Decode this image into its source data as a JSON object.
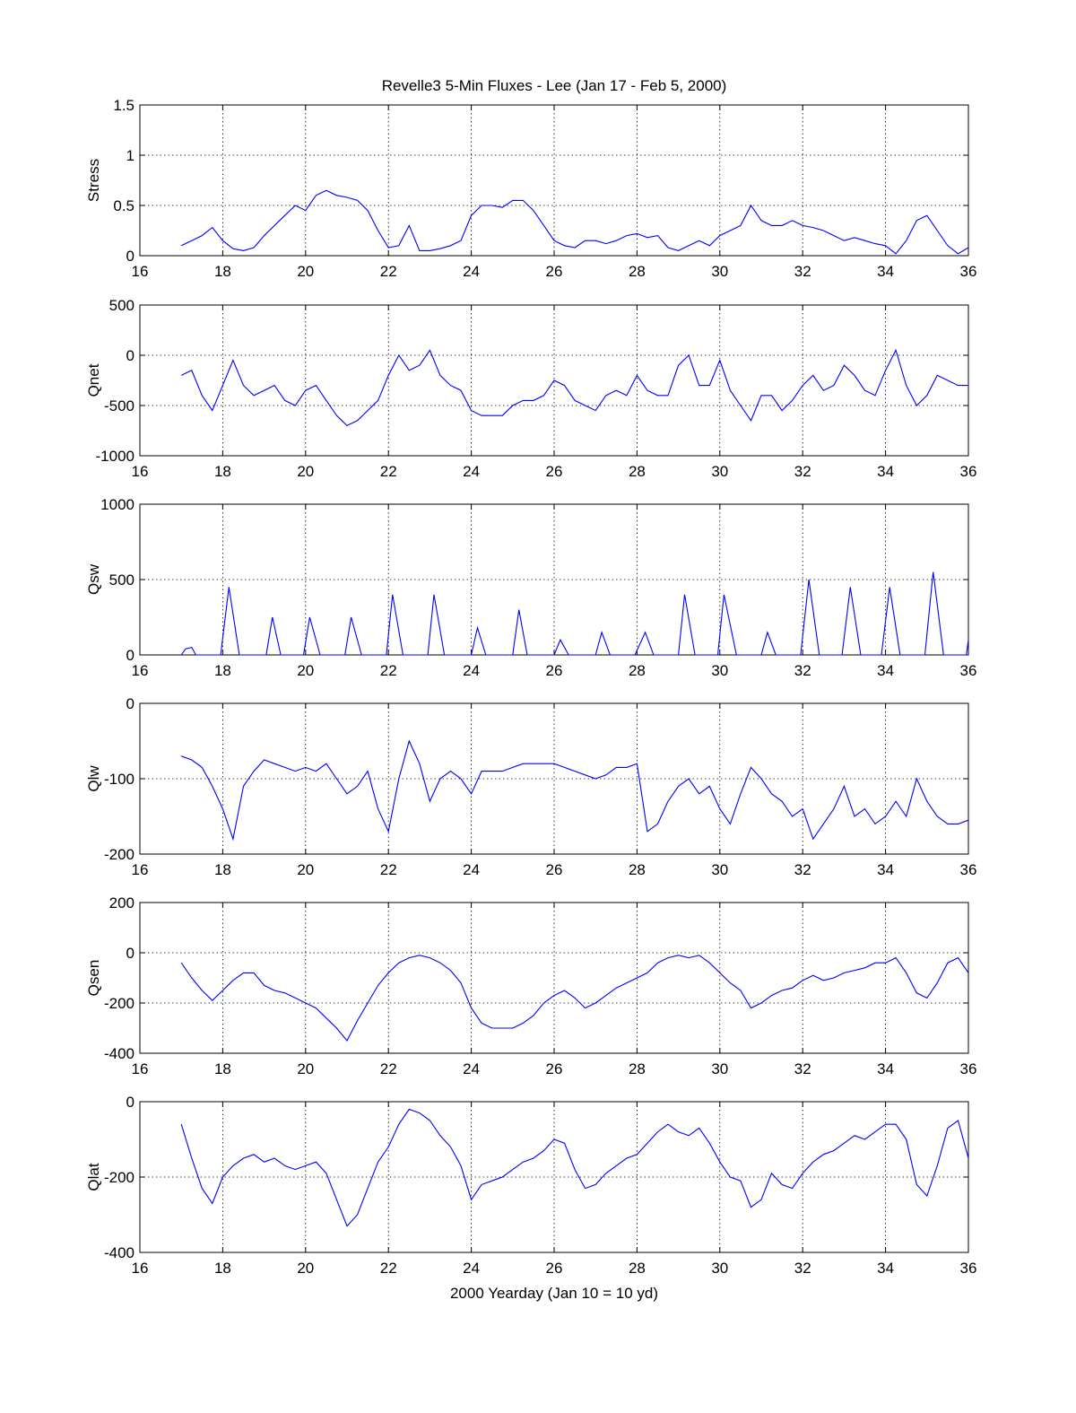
{
  "chart_data": {
    "type": "line",
    "title": "Revelle3 5-Min Fluxes - Lee (Jan 17 - Feb 5, 2000)",
    "xlabel": "2000 Yearday  (Jan 10 = 10 yd)",
    "xlim": [
      16,
      36
    ],
    "xticks": [
      "16",
      "18",
      "20",
      "22",
      "24",
      "26",
      "28",
      "30",
      "32",
      "34",
      "36"
    ],
    "grid": true,
    "line_color": "#0000ff",
    "x": [
      17,
      17.25,
      17.5,
      17.75,
      18,
      18.25,
      18.5,
      18.75,
      19,
      19.25,
      19.5,
      19.75,
      20,
      20.25,
      20.5,
      20.75,
      21,
      21.25,
      21.5,
      21.75,
      22,
      22.25,
      22.5,
      22.75,
      23,
      23.25,
      23.5,
      23.75,
      24,
      24.25,
      24.5,
      24.75,
      25,
      25.25,
      25.5,
      25.75,
      26,
      26.25,
      26.5,
      26.75,
      27,
      27.25,
      27.5,
      27.75,
      28,
      28.25,
      28.5,
      28.75,
      29,
      29.25,
      29.5,
      29.75,
      30,
      30.25,
      30.5,
      30.75,
      31,
      31.25,
      31.5,
      31.75,
      32,
      32.25,
      32.5,
      32.75,
      33,
      33.25,
      33.5,
      33.75,
      34,
      34.25,
      34.5,
      34.75,
      35,
      35.25,
      35.5,
      35.75,
      36
    ],
    "panels": [
      {
        "ylabel": "Stress",
        "ylim": [
          0,
          1.5
        ],
        "yticks": [
          "0",
          "0.5",
          "1",
          "1.5"
        ],
        "values": [
          0.1,
          0.15,
          0.2,
          0.28,
          0.15,
          0.07,
          0.05,
          0.08,
          0.2,
          0.3,
          0.4,
          0.5,
          0.45,
          0.6,
          0.65,
          0.6,
          0.58,
          0.55,
          0.45,
          0.25,
          0.08,
          0.1,
          0.3,
          0.05,
          0.05,
          0.07,
          0.1,
          0.15,
          0.4,
          0.5,
          0.5,
          0.48,
          0.55,
          0.55,
          0.45,
          0.3,
          0.15,
          0.1,
          0.08,
          0.15,
          0.15,
          0.12,
          0.15,
          0.2,
          0.22,
          0.18,
          0.2,
          0.08,
          0.05,
          0.1,
          0.15,
          0.1,
          0.2,
          0.25,
          0.3,
          0.5,
          0.35,
          0.3,
          0.3,
          0.35,
          0.3,
          0.28,
          0.25,
          0.2,
          0.15,
          0.18,
          0.15,
          0.12,
          0.1,
          0.02,
          0.15,
          0.35,
          0.4,
          0.25,
          0.1,
          0.02,
          0.08
        ]
      },
      {
        "ylabel": "Qnet",
        "ylim": [
          -1000,
          500
        ],
        "yticks": [
          "-1000",
          "-500",
          "0",
          "500"
        ],
        "values": [
          -200,
          -150,
          -400,
          -550,
          -300,
          -50,
          -300,
          -400,
          -350,
          -300,
          -450,
          -500,
          -350,
          -300,
          -450,
          -600,
          -700,
          -650,
          -550,
          -450,
          -200,
          0,
          -150,
          -100,
          50,
          -200,
          -300,
          -350,
          -550,
          -600,
          -600,
          -600,
          -500,
          -450,
          -450,
          -400,
          -250,
          -300,
          -450,
          -500,
          -550,
          -400,
          -350,
          -400,
          -200,
          -350,
          -400,
          -400,
          -100,
          0,
          -300,
          -300,
          -50,
          -350,
          -500,
          -650,
          -400,
          -400,
          -550,
          -450,
          -300,
          -200,
          -350,
          -300,
          -100,
          -200,
          -350,
          -400,
          -150,
          50,
          -300,
          -500,
          -400,
          -200,
          -250,
          -300,
          -300
        ]
      },
      {
        "ylabel": "Qsw",
        "ylim": [
          0,
          1000
        ],
        "yticks": [
          "0",
          "500",
          "1000"
        ],
        "points": [
          [
            17,
            0
          ],
          [
            17.1,
            40
          ],
          [
            17.25,
            50
          ],
          [
            17.35,
            0
          ],
          [
            17.95,
            0
          ],
          [
            18.15,
            450
          ],
          [
            18.4,
            0
          ],
          [
            19.05,
            0
          ],
          [
            19.2,
            250
          ],
          [
            19.4,
            0
          ],
          [
            19.95,
            0
          ],
          [
            20.1,
            250
          ],
          [
            20.35,
            0
          ],
          [
            20.95,
            0
          ],
          [
            21.1,
            250
          ],
          [
            21.35,
            0
          ],
          [
            21.95,
            0
          ],
          [
            22.1,
            400
          ],
          [
            22.35,
            0
          ],
          [
            22.95,
            0
          ],
          [
            23.1,
            400
          ],
          [
            23.35,
            0
          ],
          [
            24.0,
            0
          ],
          [
            24.15,
            180
          ],
          [
            24.35,
            0
          ],
          [
            25.0,
            0
          ],
          [
            25.15,
            300
          ],
          [
            25.35,
            0
          ],
          [
            26.0,
            0
          ],
          [
            26.15,
            100
          ],
          [
            26.35,
            0
          ],
          [
            27.0,
            0
          ],
          [
            27.15,
            150
          ],
          [
            27.35,
            0
          ],
          [
            27.95,
            0
          ],
          [
            28.2,
            150
          ],
          [
            28.4,
            0
          ],
          [
            29.0,
            0
          ],
          [
            29.15,
            400
          ],
          [
            29.4,
            0
          ],
          [
            29.95,
            0
          ],
          [
            30.1,
            400
          ],
          [
            30.4,
            0
          ],
          [
            31.0,
            0
          ],
          [
            31.15,
            150
          ],
          [
            31.35,
            0
          ],
          [
            31.95,
            0
          ],
          [
            32.15,
            500
          ],
          [
            32.4,
            0
          ],
          [
            32.95,
            0
          ],
          [
            33.15,
            450
          ],
          [
            33.4,
            0
          ],
          [
            33.9,
            0
          ],
          [
            34.1,
            450
          ],
          [
            34.35,
            0
          ],
          [
            34.95,
            0
          ],
          [
            35.15,
            550
          ],
          [
            35.4,
            0
          ],
          [
            35.95,
            0
          ],
          [
            36,
            100
          ]
        ]
      },
      {
        "ylabel": "Qlw",
        "ylim": [
          -200,
          0
        ],
        "yticks": [
          "-200",
          "-100",
          "0"
        ],
        "values": [
          -70,
          -75,
          -85,
          -110,
          -140,
          -180,
          -110,
          -90,
          -75,
          -80,
          -85,
          -90,
          -85,
          -90,
          -80,
          -100,
          -120,
          -110,
          -90,
          -140,
          -170,
          -100,
          -50,
          -80,
          -130,
          -100,
          -90,
          -100,
          -120,
          -90,
          -90,
          -90,
          -85,
          -80,
          -80,
          -80,
          -80,
          -85,
          -90,
          -95,
          -100,
          -95,
          -85,
          -85,
          -80,
          -170,
          -160,
          -130,
          -110,
          -100,
          -120,
          -110,
          -140,
          -160,
          -120,
          -85,
          -100,
          -120,
          -130,
          -150,
          -140,
          -180,
          -160,
          -140,
          -110,
          -150,
          -140,
          -160,
          -150,
          -130,
          -150,
          -100,
          -130,
          -150,
          -160,
          -160,
          -155
        ]
      },
      {
        "ylabel": "Qsen",
        "ylim": [
          -400,
          200
        ],
        "yticks": [
          "-400",
          "-200",
          "0",
          "200"
        ],
        "values": [
          -40,
          -100,
          -150,
          -190,
          -150,
          -110,
          -80,
          -80,
          -130,
          -150,
          -160,
          -180,
          -200,
          -220,
          -260,
          -300,
          -350,
          -270,
          -200,
          -130,
          -80,
          -40,
          -20,
          -10,
          -20,
          -40,
          -70,
          -120,
          -220,
          -280,
          -300,
          -300,
          -300,
          -280,
          -250,
          -200,
          -170,
          -150,
          -180,
          -220,
          -200,
          -170,
          -140,
          -120,
          -100,
          -80,
          -40,
          -20,
          -10,
          -20,
          -10,
          -40,
          -80,
          -120,
          -150,
          -220,
          -200,
          -170,
          -150,
          -140,
          -110,
          -90,
          -110,
          -100,
          -80,
          -70,
          -60,
          -40,
          -40,
          -20,
          -80,
          -160,
          -180,
          -120,
          -40,
          -20,
          -80
        ]
      },
      {
        "ylabel": "Qlat",
        "ylim": [
          -400,
          0
        ],
        "yticks": [
          "-400",
          "-200",
          "0"
        ],
        "values": [
          -60,
          -150,
          -230,
          -270,
          -200,
          -170,
          -150,
          -140,
          -160,
          -150,
          -170,
          -180,
          -170,
          -160,
          -190,
          -260,
          -330,
          -300,
          -230,
          -160,
          -120,
          -60,
          -20,
          -30,
          -50,
          -90,
          -120,
          -170,
          -260,
          -220,
          -210,
          -200,
          -180,
          -160,
          -150,
          -130,
          -100,
          -110,
          -180,
          -230,
          -220,
          -190,
          -170,
          -150,
          -140,
          -110,
          -80,
          -60,
          -80,
          -90,
          -70,
          -110,
          -160,
          -200,
          -210,
          -280,
          -260,
          -190,
          -220,
          -230,
          -190,
          -160,
          -140,
          -130,
          -110,
          -90,
          -100,
          -80,
          -60,
          -60,
          -100,
          -220,
          -250,
          -170,
          -70,
          -50,
          -150
        ]
      }
    ]
  }
}
